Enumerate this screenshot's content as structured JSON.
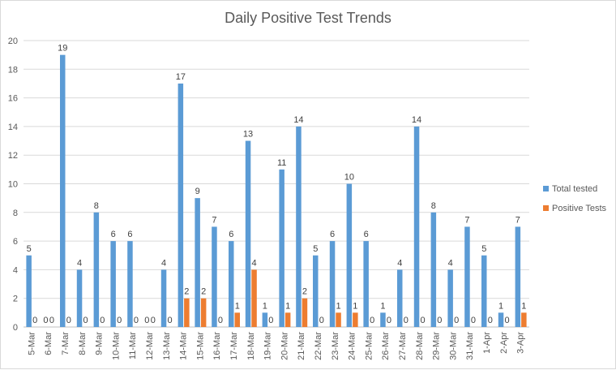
{
  "chart_data": {
    "type": "bar",
    "title": "Daily Positive Test Trends",
    "categories": [
      "5-Mar",
      "6-Mar",
      "7-Mar",
      "8-Mar",
      "9-Mar",
      "10-Mar",
      "11-Mar",
      "12-Mar",
      "13-Mar",
      "14-Mar",
      "15-Mar",
      "16-Mar",
      "17-Mar",
      "18-Mar",
      "19-Mar",
      "20-Mar",
      "21-Mar",
      "22-Mar",
      "23-Mar",
      "24-Mar",
      "25-Mar",
      "26-Mar",
      "27-Mar",
      "28-Mar",
      "29-Mar",
      "30-Mar",
      "31-Mar",
      "1-Apr",
      "2-Apr",
      "3-Apr"
    ],
    "series": [
      {
        "name": "Total tested",
        "color": "#5b9bd5",
        "values": [
          5,
          0,
          19,
          4,
          8,
          6,
          6,
          0,
          4,
          17,
          9,
          7,
          6,
          13,
          1,
          11,
          14,
          5,
          6,
          10,
          6,
          1,
          4,
          14,
          8,
          4,
          7,
          5,
          1,
          7
        ]
      },
      {
        "name": "Positive Tests",
        "color": "#ed7d31",
        "values": [
          0,
          0,
          0,
          0,
          0,
          0,
          0,
          0,
          0,
          2,
          2,
          0,
          1,
          4,
          0,
          1,
          2,
          0,
          1,
          1,
          0,
          0,
          0,
          0,
          0,
          0,
          0,
          0,
          0,
          1
        ]
      }
    ],
    "ylim": [
      0,
      20
    ],
    "yticks": [
      0,
      2,
      4,
      6,
      8,
      10,
      12,
      14,
      16,
      18,
      20
    ],
    "grid": true,
    "legend_position": "right"
  }
}
